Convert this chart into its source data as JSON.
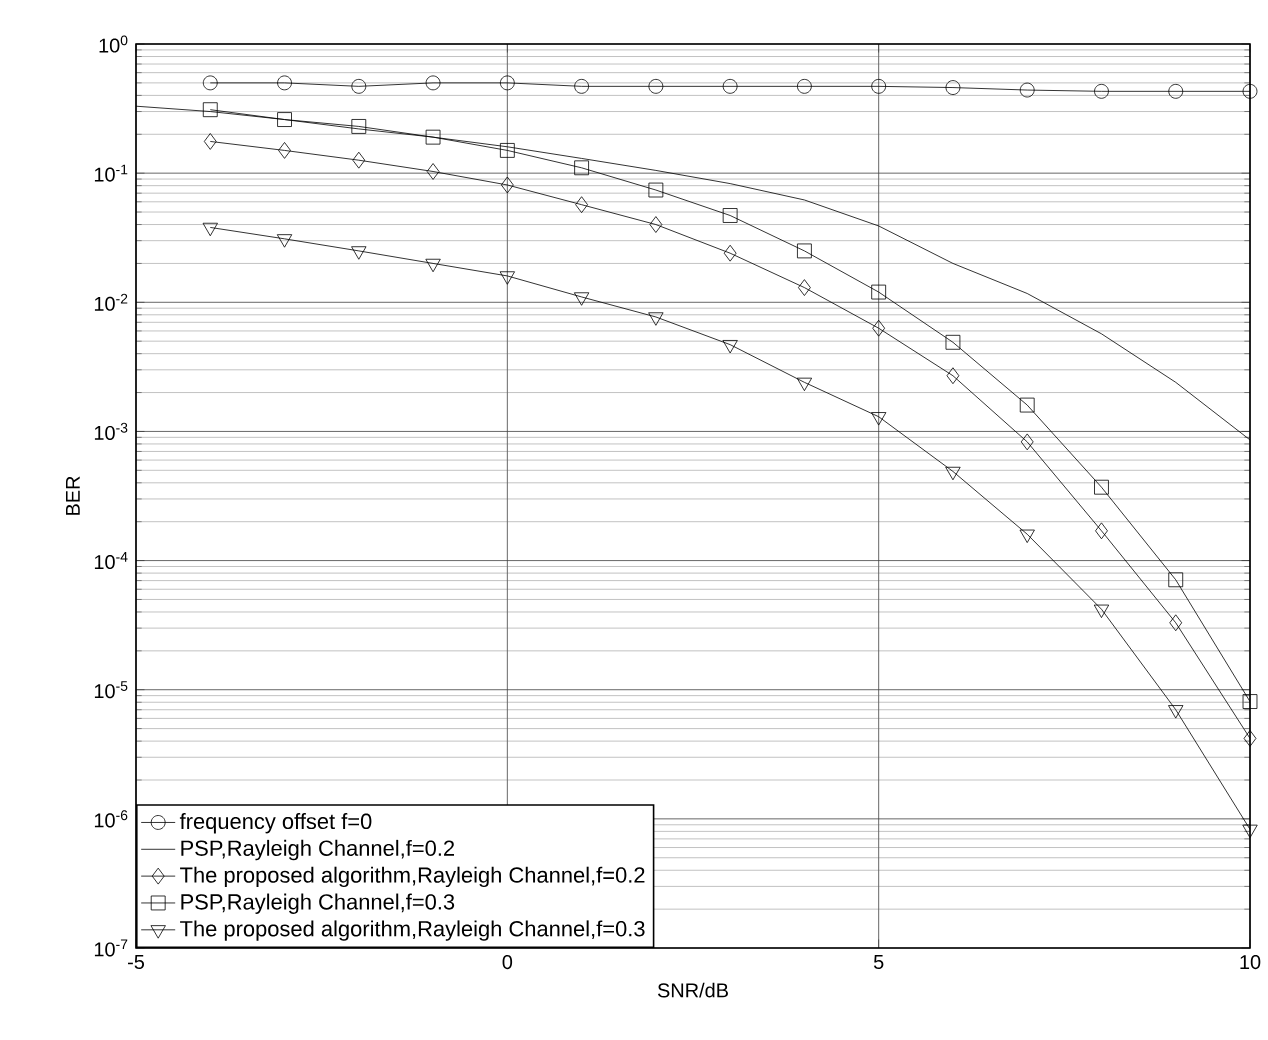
{
  "chart_data": {
    "type": "line",
    "xlabel": "SNR/dB",
    "ylabel": "BER",
    "log": "y",
    "grid": true,
    "legend": "bottom left",
    "xlim": [
      -5,
      10
    ],
    "ylim": [
      1e-07,
      1
    ],
    "xticks": [
      -5,
      0,
      5,
      10
    ],
    "yticks": [
      {
        "value": 1e-07,
        "label": "10$^{-7}$"
      },
      {
        "value": 1e-06,
        "label": "10$^{-6}$"
      },
      {
        "value": 1e-05,
        "label": "10$^{-5}$"
      },
      {
        "value": 0.0001,
        "label": "10$^{-4}$"
      },
      {
        "value": 0.001,
        "label": "10$^{-3}$"
      },
      {
        "value": 0.01,
        "label": "10$^{-2}$"
      },
      {
        "value": 0.1,
        "label": "10$^{-1}$"
      },
      {
        "value": 1,
        "label": "10$^{0}$"
      }
    ],
    "series": [
      {
        "name": "frequency offset f=0",
        "color": "#000000",
        "marker": "circle",
        "x": [
          -4,
          -3,
          -2,
          -1,
          0,
          1,
          2,
          3,
          4,
          5,
          6,
          7,
          8,
          9,
          10
        ],
        "values": [
          0.5,
          0.5,
          0.47,
          0.5,
          0.5,
          0.47,
          0.47,
          0.47,
          0.47,
          0.47,
          0.46,
          0.44,
          0.43,
          0.43,
          0.43
        ]
      },
      {
        "name": "PSP,Rayleigh Channel,f=0.2",
        "color": "#000000",
        "marker": "none",
        "x": [
          -5,
          -4,
          -3,
          -2,
          -1,
          0,
          1,
          2,
          3,
          4,
          5,
          6,
          7,
          8,
          9,
          10
        ],
        "values": [
          0.33,
          0.3,
          0.26,
          0.22,
          0.19,
          0.16,
          0.13,
          0.105,
          0.083,
          0.062,
          0.039,
          0.02,
          0.0117,
          0.0057,
          0.0024,
          0.00086
        ]
      },
      {
        "name": "The proposed algorithm,Rayleigh Channel,f=0.2",
        "color": "#000000",
        "marker": "diamond",
        "x": [
          -4,
          -3,
          -2,
          -1,
          0,
          1,
          2,
          3,
          4,
          5,
          6,
          7,
          8,
          9,
          10
        ],
        "values": [
          0.176,
          0.15,
          0.126,
          0.103,
          0.081,
          0.057,
          0.04,
          0.024,
          0.013,
          0.0063,
          0.0027,
          0.00083,
          0.00017,
          3.3e-05,
          4.2e-06
        ]
      },
      {
        "name": "PSP,Rayleigh Channel,f=0.3",
        "color": "#000000",
        "marker": "square",
        "x": [
          -4,
          -3,
          -2,
          -1,
          0,
          1,
          2,
          3,
          4,
          5,
          6,
          7,
          8,
          9,
          10
        ],
        "values": [
          0.31,
          0.26,
          0.23,
          0.19,
          0.15,
          0.11,
          0.074,
          0.047,
          0.025,
          0.012,
          0.0049,
          0.0016,
          0.00037,
          7.1e-05,
          8.1e-06
        ]
      },
      {
        "name": "The proposed algorithm,Rayleigh Channel,f=0.3",
        "color": "#000000",
        "marker": "triangle",
        "x": [
          -4,
          -3,
          -2,
          -1,
          0,
          1,
          2,
          3,
          4,
          5,
          6,
          7,
          8,
          9,
          10
        ],
        "values": [
          0.038,
          0.031,
          0.025,
          0.02,
          0.016,
          0.011,
          0.0077,
          0.0047,
          0.0024,
          0.0013,
          0.00049,
          0.00016,
          4.2e-05,
          7e-06,
          8.3e-07
        ]
      }
    ]
  }
}
